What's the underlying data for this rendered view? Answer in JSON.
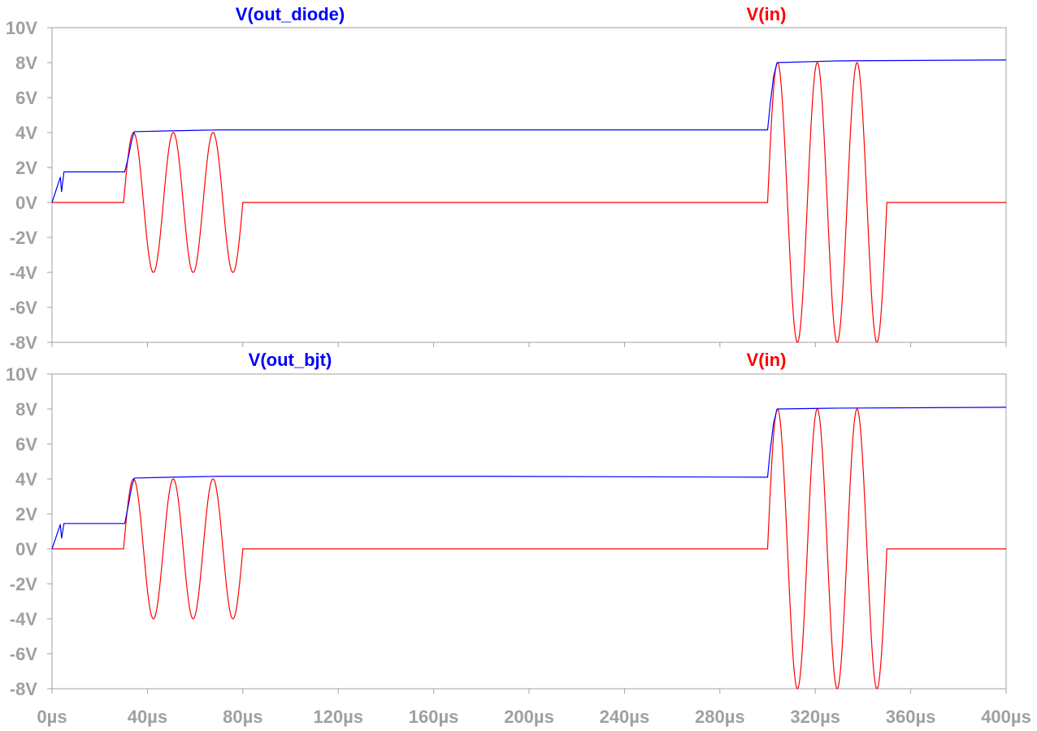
{
  "chart_data": [
    {
      "type": "line",
      "panel": "top",
      "ylim": [
        -8,
        10
      ],
      "xlim": [
        0,
        400
      ],
      "y_ticks": [
        "10V",
        "8V",
        "6V",
        "4V",
        "2V",
        "0V",
        "-2V",
        "-4V",
        "-6V",
        "-8V"
      ],
      "y_tick_values": [
        10,
        8,
        6,
        4,
        2,
        0,
        -2,
        -4,
        -6,
        -8
      ],
      "series": [
        {
          "name": "V(out_diode)",
          "color": "#0000ff",
          "points": [
            [
              0,
              0
            ],
            [
              3.5,
              1.45
            ],
            [
              4,
              0.6
            ],
            [
              5,
              1.75
            ],
            [
              30.5,
              1.75
            ],
            [
              32,
              2.6
            ],
            [
              33.5,
              3.6
            ],
            [
              34.5,
              4.05
            ],
            [
              50,
              4.1
            ],
            [
              70,
              4.15
            ],
            [
              300,
              4.15
            ],
            [
              301,
              5.5
            ],
            [
              302.5,
              7.2
            ],
            [
              304,
              8.0
            ],
            [
              330,
              8.1
            ],
            [
              400,
              8.15
            ]
          ]
        },
        {
          "name": "V(in)",
          "color": "#ff0000",
          "segments": [
            {
              "start": 0,
              "end": 30,
              "value": 0
            },
            {
              "start": 30,
              "end": 80,
              "amplitude": 4,
              "period": 16.67,
              "phase": "cosine-sweep"
            },
            {
              "start": 80,
              "end": 300,
              "value": 0
            },
            {
              "start": 300,
              "end": 350,
              "amplitude": 8,
              "period": 16.67,
              "phase": "cosine-sweep"
            },
            {
              "start": 350,
              "end": 400,
              "value": 0
            }
          ]
        }
      ]
    },
    {
      "type": "line",
      "panel": "bottom",
      "ylim": [
        -8,
        10
      ],
      "xlim": [
        0,
        400
      ],
      "y_ticks": [
        "10V",
        "8V",
        "6V",
        "4V",
        "2V",
        "0V",
        "-2V",
        "-4V",
        "-6V",
        "-8V"
      ],
      "y_tick_values": [
        10,
        8,
        6,
        4,
        2,
        0,
        -2,
        -4,
        -6,
        -8
      ],
      "x_ticks": [
        "0µs",
        "40µs",
        "80µs",
        "120µs",
        "160µs",
        "200µs",
        "240µs",
        "280µs",
        "320µs",
        "360µs",
        "400µs"
      ],
      "x_tick_values": [
        0,
        40,
        80,
        120,
        160,
        200,
        240,
        280,
        320,
        360,
        400
      ],
      "series": [
        {
          "name": "V(out_bjt)",
          "color": "#0000ff",
          "points": [
            [
              0,
              0
            ],
            [
              3.5,
              1.4
            ],
            [
              4,
              0.6
            ],
            [
              5,
              1.45
            ],
            [
              30.5,
              1.45
            ],
            [
              32,
              2.5
            ],
            [
              33.5,
              3.6
            ],
            [
              34.5,
              4.05
            ],
            [
              50,
              4.1
            ],
            [
              70,
              4.15
            ],
            [
              180,
              4.15
            ],
            [
              300,
              4.1
            ],
            [
              301,
              5.5
            ],
            [
              302.5,
              7.2
            ],
            [
              304,
              8.0
            ],
            [
              330,
              8.05
            ],
            [
              400,
              8.1
            ]
          ]
        },
        {
          "name": "V(in)",
          "color": "#ff0000",
          "segments": [
            {
              "start": 0,
              "end": 30,
              "value": 0
            },
            {
              "start": 30,
              "end": 80,
              "amplitude": 4,
              "period": 16.67,
              "phase": "cosine-sweep"
            },
            {
              "start": 80,
              "end": 300,
              "value": 0
            },
            {
              "start": 300,
              "end": 350,
              "amplitude": 8,
              "period": 16.67,
              "phase": "cosine-sweep"
            },
            {
              "start": 350,
              "end": 400,
              "value": 0
            }
          ]
        }
      ]
    }
  ],
  "colors": {
    "axis": "#a0a0a0",
    "tick_text": "#a0a0a0"
  }
}
